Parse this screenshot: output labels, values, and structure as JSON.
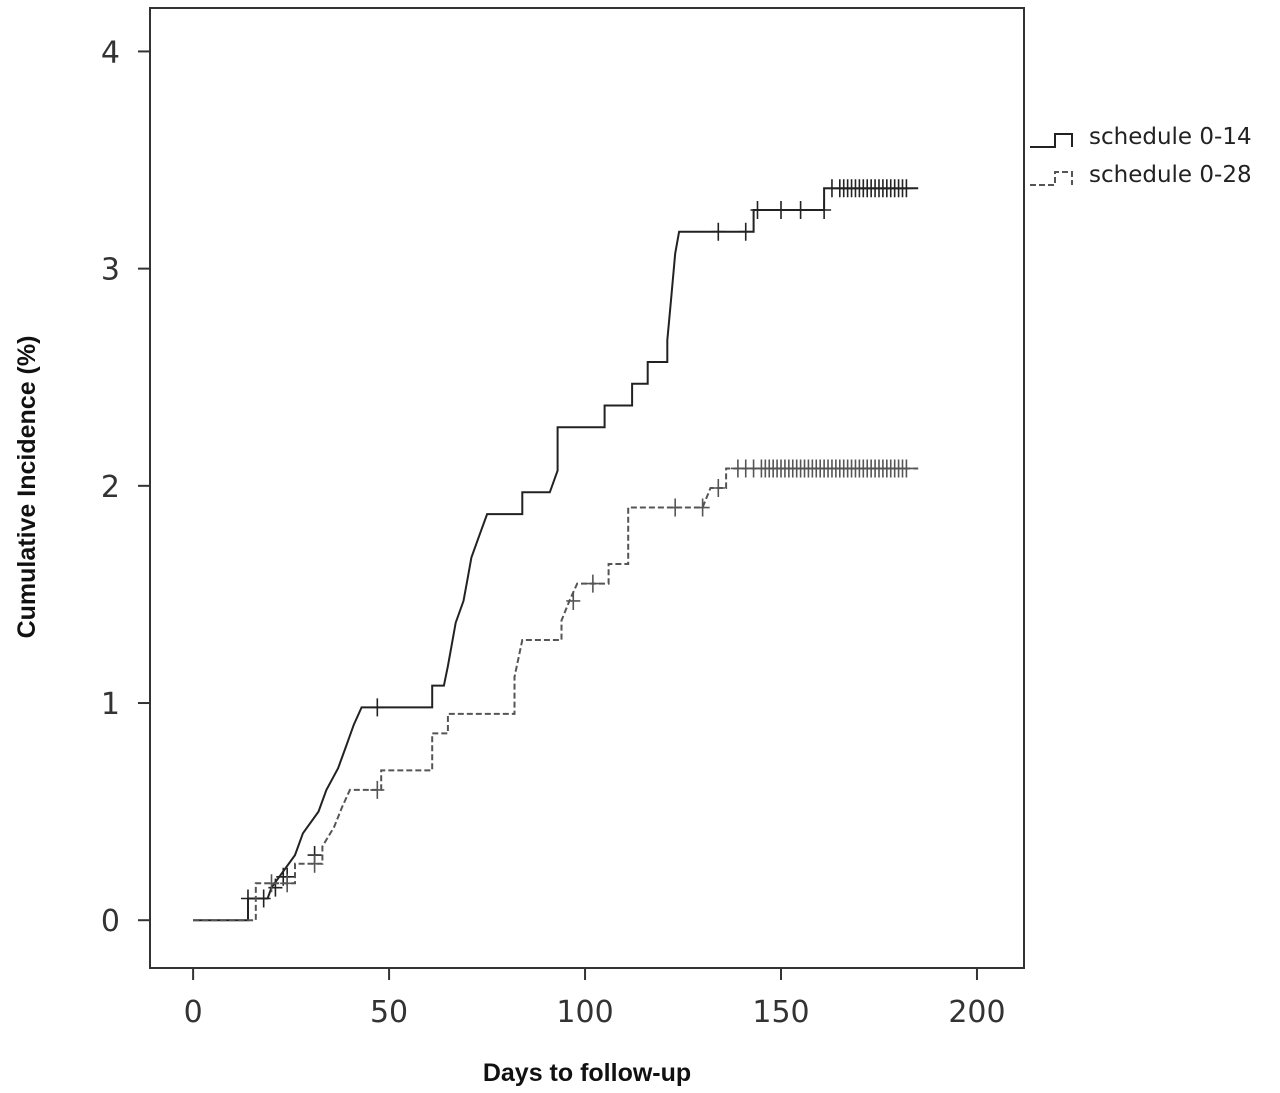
{
  "chart_data": {
    "type": "line",
    "subtype": "step (cumulative incidence)",
    "xlabel": "Days to follow-up",
    "ylabel": "Cumulative Incidence (%)",
    "xlim": [
      -11,
      212
    ],
    "ylim": [
      -0.22,
      4.2
    ],
    "x_ticks": [
      0,
      50,
      100,
      150,
      200
    ],
    "y_ticks": [
      0,
      1,
      2,
      3,
      4
    ],
    "grid": false,
    "legend_position": "right, outside plot, top",
    "series": [
      {
        "name": "schedule 0-14",
        "line_style": "solid",
        "color": "#222222",
        "steps": [
          [
            0,
            0
          ],
          [
            14,
            0
          ],
          [
            14,
            0.1
          ],
          [
            19,
            0.1
          ],
          [
            20,
            0.15
          ],
          [
            22,
            0.2
          ],
          [
            26,
            0.3
          ],
          [
            28,
            0.4
          ],
          [
            32,
            0.5
          ],
          [
            34,
            0.6
          ],
          [
            37,
            0.7
          ],
          [
            39,
            0.8
          ],
          [
            41,
            0.9
          ],
          [
            43,
            0.98
          ],
          [
            61,
            0.98
          ],
          [
            61,
            1.08
          ],
          [
            64,
            1.08
          ],
          [
            65,
            1.17
          ],
          [
            66,
            1.27
          ],
          [
            67,
            1.37
          ],
          [
            69,
            1.47
          ],
          [
            70,
            1.57
          ],
          [
            71,
            1.67
          ],
          [
            73,
            1.77
          ],
          [
            75,
            1.87
          ],
          [
            84,
            1.87
          ],
          [
            84,
            1.97
          ],
          [
            91,
            1.97
          ],
          [
            93,
            2.07
          ],
          [
            93,
            2.27
          ],
          [
            105,
            2.27
          ],
          [
            105,
            2.37
          ],
          [
            112,
            2.37
          ],
          [
            112,
            2.47
          ],
          [
            116,
            2.47
          ],
          [
            116,
            2.57
          ],
          [
            121,
            2.57
          ],
          [
            121,
            2.67
          ],
          [
            122,
            2.87
          ],
          [
            123,
            3.07
          ],
          [
            124,
            3.17
          ],
          [
            143,
            3.17
          ],
          [
            143,
            3.27
          ],
          [
            161,
            3.27
          ],
          [
            161,
            3.37
          ],
          [
            185,
            3.37
          ]
        ],
        "censor_x": [
          14,
          18,
          21,
          23,
          24,
          31,
          47,
          134,
          141,
          144,
          150,
          155,
          161,
          163,
          165,
          166,
          167,
          168,
          169,
          170,
          171,
          172,
          173,
          174,
          175,
          176,
          177,
          178,
          179,
          180,
          181,
          182
        ],
        "censor_y": [
          0.1,
          0.1,
          0.15,
          0.2,
          0.2,
          0.3,
          0.98,
          3.17,
          3.17,
          3.27,
          3.27,
          3.27,
          3.27,
          3.37,
          3.37,
          3.37,
          3.37,
          3.37,
          3.37,
          3.37,
          3.37,
          3.37,
          3.37,
          3.37,
          3.37,
          3.37,
          3.37,
          3.37,
          3.37,
          3.37,
          3.37,
          3.37
        ]
      },
      {
        "name": "schedule 0-28",
        "line_style": "dashed",
        "color": "#555555",
        "steps": [
          [
            0,
            0
          ],
          [
            16,
            0
          ],
          [
            16,
            0.17
          ],
          [
            26,
            0.17
          ],
          [
            26,
            0.26
          ],
          [
            33,
            0.26
          ],
          [
            33,
            0.34
          ],
          [
            36,
            0.43
          ],
          [
            38,
            0.52
          ],
          [
            40,
            0.6
          ],
          [
            48,
            0.6
          ],
          [
            48,
            0.69
          ],
          [
            61,
            0.69
          ],
          [
            61,
            0.86
          ],
          [
            65,
            0.86
          ],
          [
            65,
            0.95
          ],
          [
            82,
            0.95
          ],
          [
            82,
            1.12
          ],
          [
            84,
            1.29
          ],
          [
            94,
            1.29
          ],
          [
            94,
            1.38
          ],
          [
            96,
            1.47
          ],
          [
            98,
            1.55
          ],
          [
            106,
            1.55
          ],
          [
            106,
            1.64
          ],
          [
            111,
            1.64
          ],
          [
            111,
            1.9
          ],
          [
            130,
            1.9
          ],
          [
            132,
            1.99
          ],
          [
            136,
            1.99
          ],
          [
            136,
            2.08
          ],
          [
            185,
            2.08
          ]
        ],
        "censor_x": [
          20,
          24,
          31,
          47,
          97,
          102,
          123,
          130,
          134,
          139,
          141,
          143,
          145,
          146,
          147,
          148,
          149,
          150,
          151,
          152,
          153,
          154,
          155,
          156,
          157,
          158,
          159,
          160,
          161,
          162,
          163,
          164,
          165,
          166,
          167,
          168,
          169,
          170,
          171,
          172,
          173,
          174,
          175,
          176,
          177,
          178,
          179,
          180,
          181,
          182
        ],
        "censor_y": [
          0.17,
          0.17,
          0.26,
          0.6,
          1.47,
          1.55,
          1.9,
          1.9,
          1.99,
          2.08,
          2.08,
          2.08,
          2.08,
          2.08,
          2.08,
          2.08,
          2.08,
          2.08,
          2.08,
          2.08,
          2.08,
          2.08,
          2.08,
          2.08,
          2.08,
          2.08,
          2.08,
          2.08,
          2.08,
          2.08,
          2.08,
          2.08,
          2.08,
          2.08,
          2.08,
          2.08,
          2.08,
          2.08,
          2.08,
          2.08,
          2.08,
          2.08,
          2.08,
          2.08,
          2.08,
          2.08,
          2.08,
          2.08,
          2.08,
          2.08
        ]
      }
    ]
  }
}
